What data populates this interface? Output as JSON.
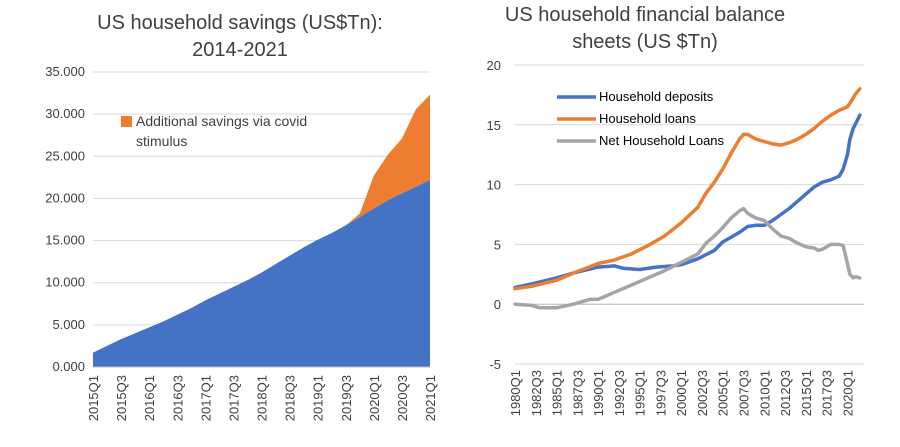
{
  "chart_data": [
    {
      "type": "area",
      "title_lines": [
        "US household savings (US$Tn):",
        "2014-2021"
      ],
      "ylim": [
        0,
        35
      ],
      "y_ticks": [
        0,
        5,
        10,
        15,
        20,
        25,
        30,
        35
      ],
      "y_tick_labels": [
        "0.000",
        "5.000",
        "10.000",
        "15.000",
        "20.000",
        "25.000",
        "30.000",
        "35.000"
      ],
      "x": [
        "2015Q1",
        "2015Q2",
        "2015Q3",
        "2015Q4",
        "2016Q1",
        "2016Q2",
        "2016Q3",
        "2016Q4",
        "2017Q1",
        "2017Q2",
        "2017Q3",
        "2017Q4",
        "2018Q1",
        "2018Q2",
        "2018Q3",
        "2018Q4",
        "2019Q1",
        "2019Q2",
        "2019Q3",
        "2019Q4",
        "2020Q1",
        "2020Q2",
        "2020Q3",
        "2020Q4",
        "2021Q1"
      ],
      "x_tick_labels": [
        "2015Q1",
        "2015Q3",
        "2016Q1",
        "2016Q3",
        "2017Q1",
        "2017Q3",
        "2018Q1",
        "2018Q3",
        "2019Q1",
        "2019Q3",
        "2020Q1",
        "2020Q3",
        "2021Q1"
      ],
      "grid": true,
      "series": [
        {
          "key": "base",
          "color": "#4472C4",
          "values": [
            1.7,
            2.5,
            3.3,
            4.0,
            4.7,
            5.4,
            6.2,
            7.0,
            7.9,
            8.7,
            9.5,
            10.3,
            11.2,
            12.2,
            13.2,
            14.2,
            15.1,
            15.9,
            16.8,
            17.8,
            18.8,
            19.8,
            20.6,
            21.4,
            22.2
          ]
        },
        {
          "key": "covid",
          "name": "Additional savings via covid stimulus",
          "color": "#ED7D31",
          "values": [
            0,
            0,
            0,
            0,
            0,
            0,
            0,
            0,
            0,
            0,
            0,
            0,
            0,
            0,
            0,
            0,
            0,
            0,
            0,
            0.4,
            3.9,
            5.4,
            6.5,
            9.2,
            10.1
          ]
        }
      ],
      "legend": {
        "lines": [
          "Additional savings via covid",
          "stimulus"
        ]
      }
    },
    {
      "type": "line",
      "title_lines": [
        "US household financial balance",
        "sheets (US $Tn)"
      ],
      "ylim": [
        -5,
        20
      ],
      "y_ticks": [
        -5,
        0,
        5,
        10,
        15,
        20
      ],
      "x_tick_labels": [
        "1980Q1",
        "1982Q3",
        "1985Q1",
        "1987Q3",
        "1990Q1",
        "1992Q3",
        "1995Q1",
        "1997Q3",
        "2000Q1",
        "2002Q3",
        "2005Q1",
        "2007Q3",
        "2010Q1",
        "2012Q3",
        "2015Q1",
        "2017Q3",
        "2020Q1"
      ],
      "x_range": [
        1980.0,
        2022.0
      ],
      "grid": true,
      "series": [
        {
          "name": "Household deposits",
          "color": "#4472C4",
          "x": [
            1980,
            1982,
            1985,
            1987,
            1990,
            1992,
            1993,
            1995,
            1997,
            1999,
            2000,
            2002,
            2004,
            2005,
            2007,
            2008,
            2009,
            2010,
            2011,
            2012,
            2013,
            2014,
            2015,
            2016,
            2017,
            2018,
            2019,
            2019.5,
            2020,
            2020.3,
            2020.7,
            2021,
            2021.5
          ],
          "y": [
            1.4,
            1.7,
            2.2,
            2.6,
            3.1,
            3.2,
            3.0,
            2.9,
            3.1,
            3.2,
            3.3,
            3.8,
            4.5,
            5.2,
            6.0,
            6.5,
            6.6,
            6.6,
            7.0,
            7.5,
            8.0,
            8.6,
            9.2,
            9.8,
            10.2,
            10.4,
            10.7,
            11.3,
            12.5,
            13.8,
            14.7,
            15.1,
            15.8
          ]
        },
        {
          "name": "Household loans",
          "color": "#ED7D31",
          "x": [
            1980,
            1982,
            1985,
            1987,
            1990,
            1992,
            1994,
            1996,
            1998,
            2000,
            2002,
            2003,
            2004,
            2005,
            2006,
            2007,
            2007.5,
            2008,
            2008.5,
            2009,
            2010,
            2011,
            2012,
            2012.5,
            2013,
            2014,
            2015,
            2016,
            2017,
            2018,
            2019,
            2020,
            2020.5,
            2021,
            2021.5
          ],
          "y": [
            1.3,
            1.5,
            2.0,
            2.6,
            3.4,
            3.7,
            4.2,
            4.9,
            5.7,
            6.8,
            8.1,
            9.3,
            10.2,
            11.3,
            12.6,
            13.8,
            14.2,
            14.2,
            14.0,
            13.8,
            13.6,
            13.4,
            13.3,
            13.4,
            13.5,
            13.8,
            14.2,
            14.7,
            15.3,
            15.8,
            16.2,
            16.5,
            17.0,
            17.6,
            18.0
          ]
        },
        {
          "name": "Net Household Loans",
          "color": "#A5A5A5",
          "x": [
            1980,
            1982,
            1983,
            1985,
            1987,
            1989,
            1990,
            1992,
            1994,
            1996,
            1998,
            2000,
            2002,
            2003,
            2004,
            2005,
            2006,
            2007,
            2007.5,
            2008,
            2009,
            2010,
            2011,
            2012,
            2013,
            2014,
            2015,
            2016,
            2016.5,
            2017,
            2018,
            2019,
            2019.5,
            2020,
            2020.3,
            2020.7,
            2021,
            2021.5
          ],
          "y": [
            0.0,
            -0.1,
            -0.3,
            -0.3,
            0.0,
            0.4,
            0.4,
            1.0,
            1.6,
            2.2,
            2.8,
            3.5,
            4.2,
            5.1,
            5.7,
            6.4,
            7.2,
            7.8,
            8.0,
            7.6,
            7.2,
            7.0,
            6.3,
            5.7,
            5.5,
            5.1,
            4.8,
            4.7,
            4.5,
            4.6,
            5.0,
            5.0,
            4.9,
            3.4,
            2.5,
            2.2,
            2.3,
            2.2
          ]
        }
      ]
    }
  ]
}
